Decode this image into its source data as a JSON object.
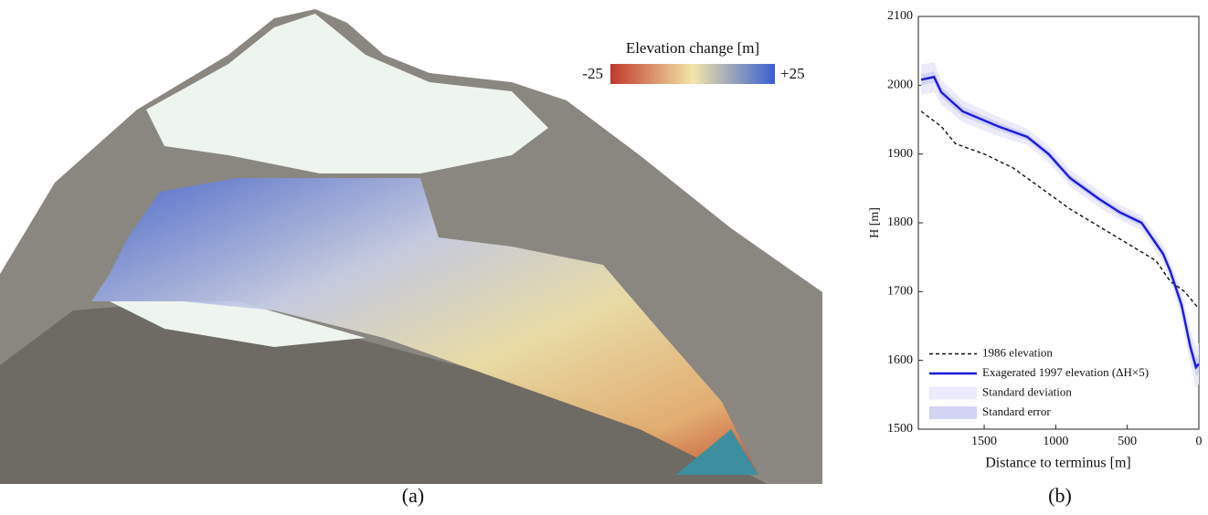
{
  "panel_a": {
    "colorbar_title": "Elevation change [m]",
    "colorbar_min": -25,
    "colorbar_max": {
      "value": 25,
      "label": "+25"
    },
    "colorbar_colors": [
      "#c0392b",
      "#f3e5a8",
      "#3a5fd0"
    ],
    "caption": "(a)"
  },
  "chart_data": {
    "type": "line",
    "caption": "(b)",
    "xlabel": "Distance to terminus [m]",
    "ylabel": "H [m]",
    "xlim": [
      1960,
      0
    ],
    "ylim": [
      1500,
      2100
    ],
    "xticks": [
      1500,
      1000,
      500,
      0
    ],
    "yticks": [
      1500,
      1600,
      1700,
      1800,
      1900,
      2000,
      2100
    ],
    "legend": "lower left",
    "bands": [
      {
        "name": "Standard deviation",
        "color": "#ebebfb",
        "x": [
          1940,
          1850,
          1800,
          1650,
          1400,
          1200,
          1050,
          900,
          700,
          550,
          400,
          250,
          200,
          120,
          60,
          20,
          0
        ],
        "upper": [
          2030,
          2034,
          2008,
          1978,
          1954,
          1937,
          1912,
          1877,
          1847,
          1826,
          1811,
          1768,
          1744,
          1700,
          1645,
          1620,
          1625
        ],
        "lower": [
          1986,
          1990,
          1972,
          1946,
          1926,
          1913,
          1888,
          1853,
          1823,
          1804,
          1789,
          1742,
          1716,
          1660,
          1595,
          1560,
          1565
        ]
      },
      {
        "name": "Standard error",
        "color": "#d3d3f5",
        "x": [
          1940,
          1850,
          1800,
          1650,
          1400,
          1200,
          1050,
          900,
          700,
          550,
          400,
          250,
          200,
          120,
          60,
          20,
          0
        ],
        "upper": [
          2016,
          2020,
          1998,
          1969,
          1946,
          1930,
          1905,
          1870,
          1840,
          1820,
          1805,
          1761,
          1737,
          1690,
          1632,
          1603,
          1608
        ],
        "lower": [
          2000,
          2004,
          1982,
          1955,
          1934,
          1920,
          1895,
          1860,
          1830,
          1810,
          1795,
          1749,
          1723,
          1670,
          1608,
          1577,
          1582
        ]
      }
    ],
    "series": [
      {
        "name": "1986 elevation",
        "color": "#111111",
        "dashed": true,
        "x": [
          1940,
          1800,
          1700,
          1500,
          1300,
          1100,
          900,
          700,
          500,
          300,
          200,
          100,
          0
        ],
        "values": [
          1962,
          1940,
          1915,
          1900,
          1880,
          1850,
          1820,
          1795,
          1770,
          1745,
          1715,
          1700,
          1675
        ]
      },
      {
        "name": "Exagerated 1997 elevation (ΔH×5)",
        "color": "#1a1ae0",
        "dashed": false,
        "x": [
          1940,
          1850,
          1800,
          1650,
          1400,
          1200,
          1050,
          900,
          700,
          550,
          400,
          250,
          200,
          120,
          60,
          20,
          0
        ],
        "values": [
          2008,
          2012,
          1990,
          1962,
          1940,
          1925,
          1900,
          1865,
          1835,
          1815,
          1800,
          1755,
          1730,
          1680,
          1620,
          1590,
          1595
        ]
      }
    ]
  }
}
